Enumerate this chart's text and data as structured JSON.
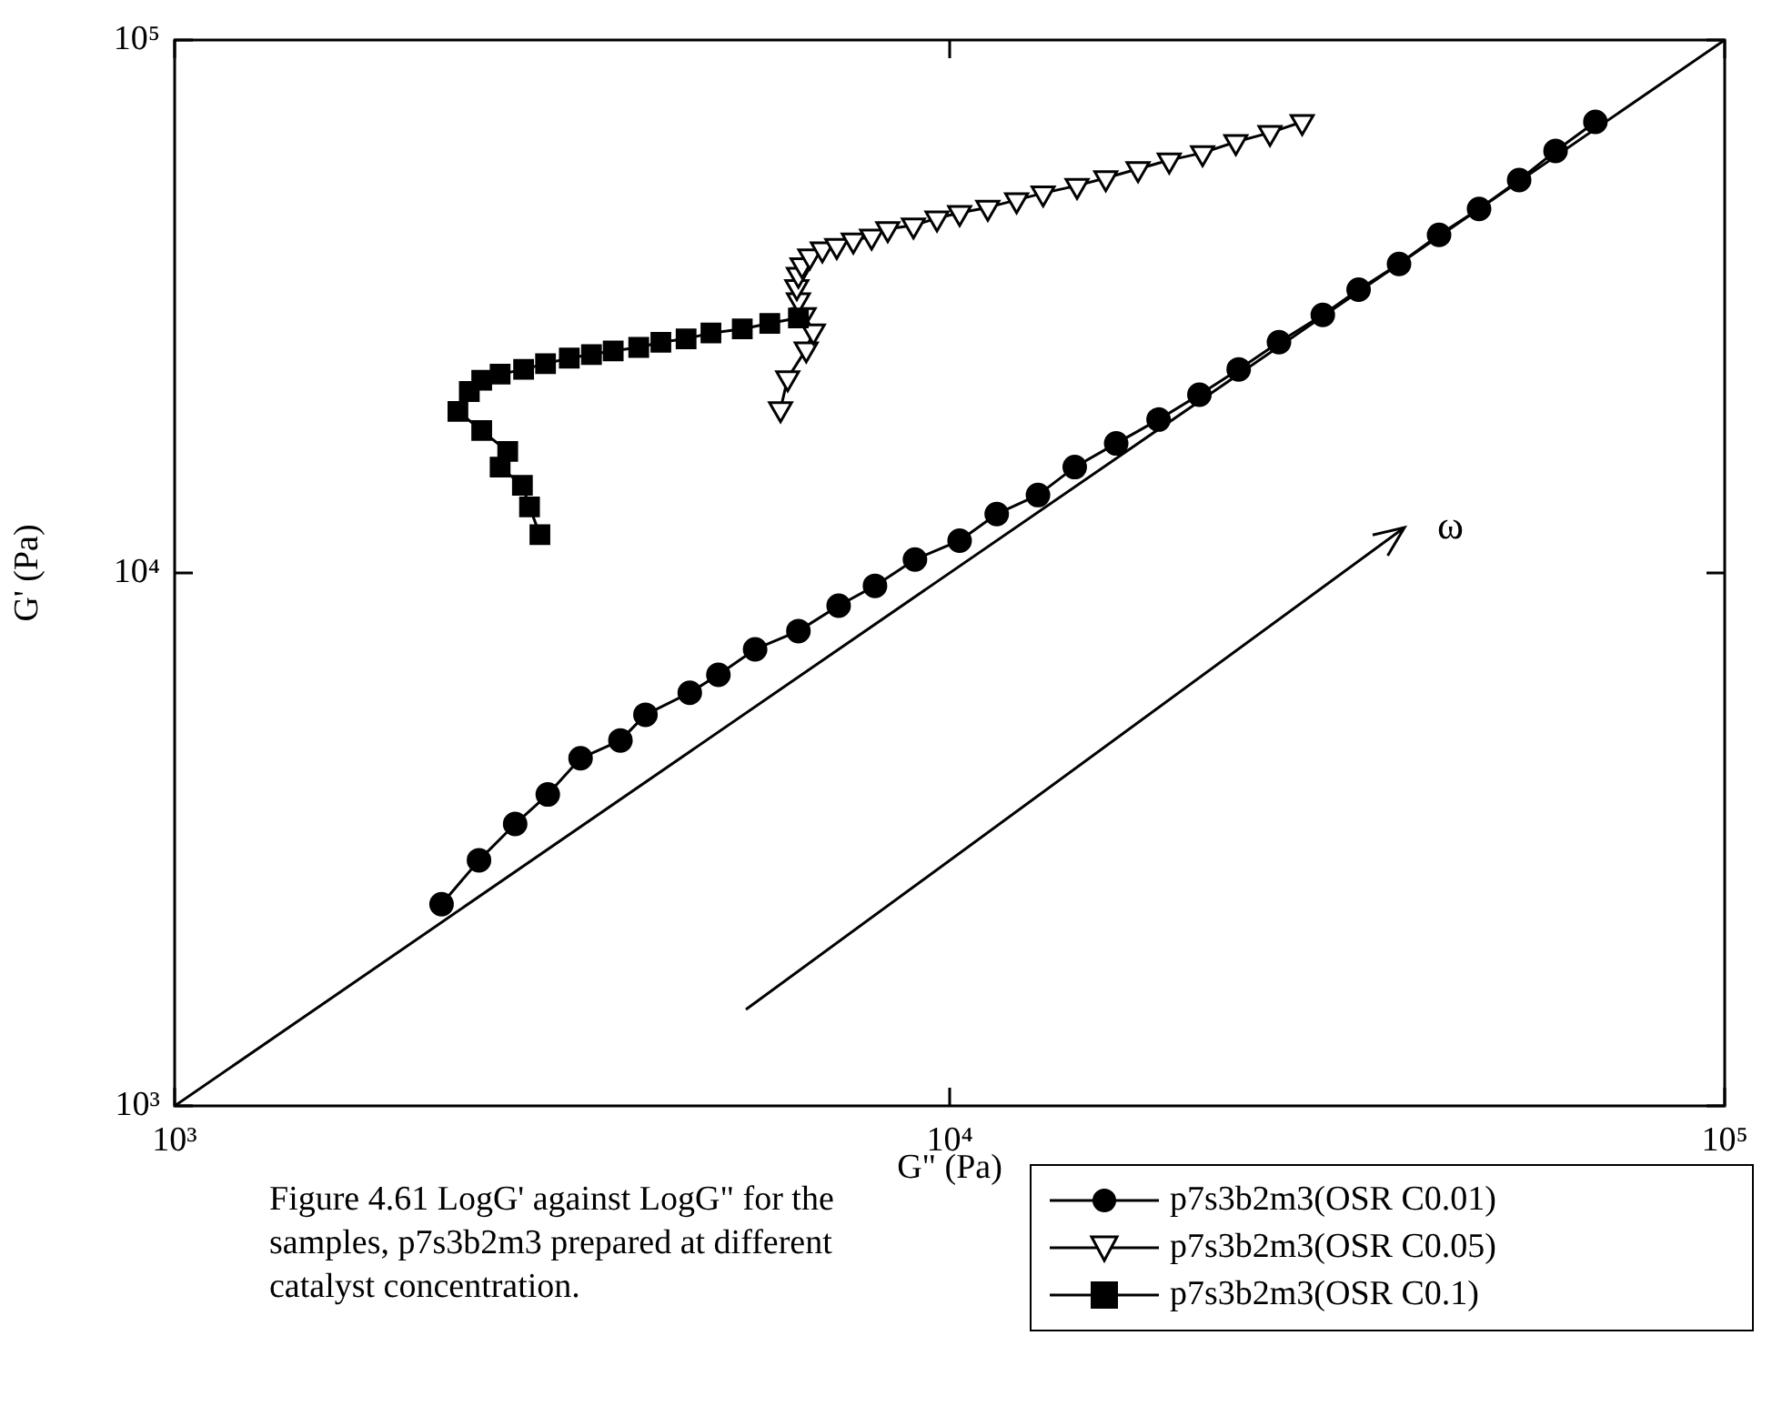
{
  "chart_data": {
    "type": "line",
    "xlabel": "G\" (Pa)",
    "ylabel": "G' (Pa)",
    "log": "xy",
    "grid": false,
    "legend": "bottom right",
    "line_style": "solid",
    "xlim": [
      1000,
      100000
    ],
    "ylim": [
      1000,
      100000
    ],
    "xticks": [
      {
        "value": 1000,
        "label": "10³"
      },
      {
        "value": 10000,
        "label": "10⁴"
      },
      {
        "value": 100000,
        "label": "10⁵"
      }
    ],
    "yticks": [
      {
        "value": 1000,
        "label": "10³"
      },
      {
        "value": 10000,
        "label": "10⁴"
      },
      {
        "value": 100000,
        "label": "10⁵"
      }
    ],
    "annotations": [
      "ω",
      "Figure 4.61 LogG' against LogG\" for the samples, p7s3b2m3 prepared at different catalyst concentration."
    ],
    "series": [
      {
        "name": "p7s3b2m3(OSR C0.01)",
        "color": "#000000",
        "marker": "circle",
        "x": [
          2210,
          2470,
          2750,
          3030,
          3340,
          3760,
          4050,
          4620,
          5030,
          5610,
          6380,
          7190,
          8010,
          9020,
          10300,
          11500,
          13000,
          14500,
          16400,
          18600,
          21000,
          23600,
          26600,
          30300,
          33700,
          38000,
          42800,
          48200,
          54300,
          60500,
          68100
        ],
        "values": [
          2390,
          2890,
          3380,
          3840,
          4490,
          4850,
          5420,
          5960,
          6440,
          7190,
          7780,
          8680,
          9460,
          10600,
          11500,
          12900,
          14000,
          15800,
          17500,
          19400,
          21600,
          24100,
          27100,
          30500,
          34000,
          38000,
          43100,
          48200,
          54600,
          61900,
          70200
        ]
      },
      {
        "name": "p7s3b2m3(OSR C0.05)",
        "color": "#000000",
        "marker": "triangle",
        "x": [
          6050,
          6180,
          6530,
          6670,
          6490,
          6380,
          6350,
          6380,
          6450,
          6600,
          6850,
          7150,
          7510,
          7930,
          8320,
          8980,
          9630,
          10300,
          11200,
          12200,
          13200,
          14600,
          15900,
          17500,
          19200,
          21200,
          23400,
          25900,
          28500
        ],
        "values": [
          20300,
          23200,
          26300,
          28400,
          30500,
          32500,
          34400,
          36300,
          37800,
          39300,
          40500,
          41100,
          42100,
          42800,
          44200,
          44900,
          46300,
          47400,
          48500,
          50100,
          51600,
          53300,
          55100,
          57300,
          59500,
          61400,
          64400,
          67000,
          70200
        ]
      },
      {
        "name": "p7s3b2m3(OSR C0.1)",
        "color": "#000000",
        "marker": "square",
        "x": [
          2960,
          2870,
          2810,
          2630,
          2690,
          2490,
          2320,
          2400,
          2490,
          2630,
          2820,
          3010,
          3230,
          3450,
          3680,
          3970,
          4240,
          4570,
          4920,
          5400,
          5860,
          6380
        ],
        "values": [
          11800,
          13300,
          14600,
          15800,
          16900,
          18500,
          20100,
          21900,
          23000,
          23600,
          24100,
          24700,
          25300,
          25700,
          26100,
          26500,
          27100,
          27500,
          28200,
          28700,
          29400,
          30100
        ]
      },
      {
        "type": "line",
        "color": "#000000",
        "marker": "none",
        "x": [
          1000,
          100000
        ],
        "values": [
          1000,
          100000
        ]
      }
    ]
  }
}
